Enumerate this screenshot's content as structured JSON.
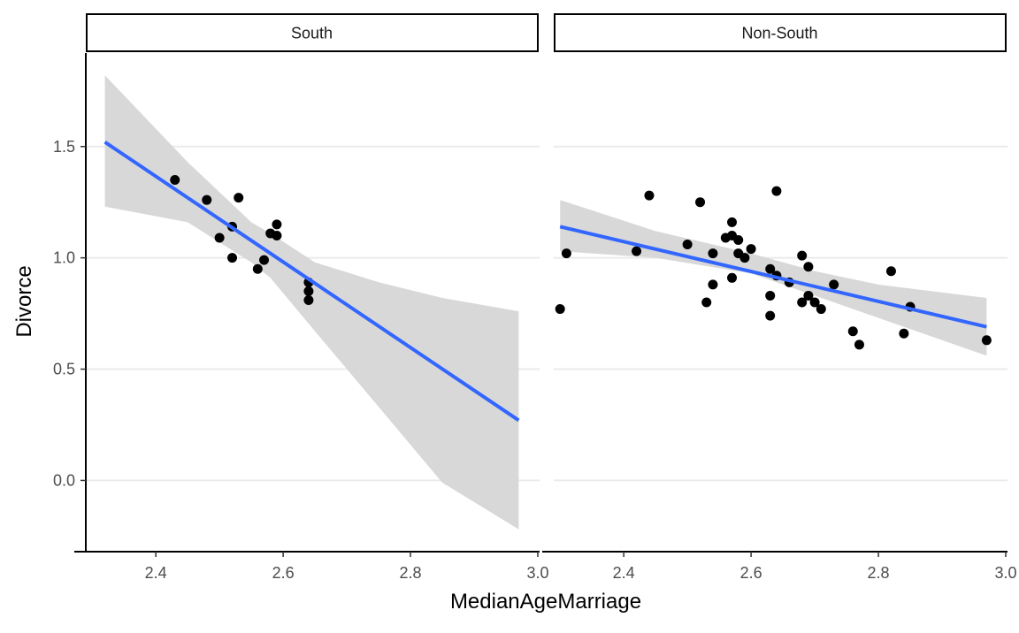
{
  "chart_data": {
    "type": "scatter",
    "xlabel": "MedianAgeMarriage",
    "ylabel": "Divorce",
    "xlim": [
      2.29,
      3.0
    ],
    "ylim": [
      -0.32,
      1.92
    ],
    "x_ticks": [
      "2.4",
      "2.6",
      "2.8",
      "3.0"
    ],
    "x_tick_values": [
      2.4,
      2.6,
      2.8,
      3.0
    ],
    "y_ticks": [
      "0.0",
      "0.5",
      "1.0",
      "1.5"
    ],
    "y_tick_values": [
      0.0,
      0.5,
      1.0,
      1.5
    ],
    "grid": "horizontal-major",
    "point_color": "#000000",
    "line_color": "#3366ff",
    "band_color": "#d6d6d6",
    "strip_border": "#000000",
    "facets": [
      {
        "label": "South",
        "points": [
          {
            "x": 2.43,
            "y": 1.35
          },
          {
            "x": 2.48,
            "y": 1.26
          },
          {
            "x": 2.5,
            "y": 1.09
          },
          {
            "x": 2.52,
            "y": 1.14
          },
          {
            "x": 2.52,
            "y": 1.0
          },
          {
            "x": 2.53,
            "y": 1.27
          },
          {
            "x": 2.56,
            "y": 0.95
          },
          {
            "x": 2.57,
            "y": 0.99
          },
          {
            "x": 2.58,
            "y": 1.11
          },
          {
            "x": 2.59,
            "y": 1.15
          },
          {
            "x": 2.59,
            "y": 1.1
          },
          {
            "x": 2.64,
            "y": 0.89
          },
          {
            "x": 2.64,
            "y": 0.85
          },
          {
            "x": 2.64,
            "y": 0.81
          }
        ],
        "fit": {
          "x": [
            2.32,
            2.97
          ],
          "y": [
            1.52,
            0.27
          ]
        },
        "band": {
          "x": [
            2.32,
            2.45,
            2.55,
            2.58,
            2.65,
            2.75,
            2.85,
            2.97
          ],
          "lower": [
            1.23,
            1.16,
            0.98,
            0.91,
            0.67,
            0.33,
            -0.01,
            -0.22
          ],
          "upper": [
            1.82,
            1.43,
            1.16,
            1.11,
            0.98,
            0.89,
            0.82,
            0.76
          ]
        }
      },
      {
        "label": "Non-South",
        "points": [
          {
            "x": 2.3,
            "y": 0.77
          },
          {
            "x": 2.31,
            "y": 1.02
          },
          {
            "x": 2.42,
            "y": 1.03
          },
          {
            "x": 2.44,
            "y": 1.28
          },
          {
            "x": 2.5,
            "y": 1.06
          },
          {
            "x": 2.52,
            "y": 1.25
          },
          {
            "x": 2.53,
            "y": 0.8
          },
          {
            "x": 2.54,
            "y": 1.02
          },
          {
            "x": 2.54,
            "y": 0.88
          },
          {
            "x": 2.56,
            "y": 1.09
          },
          {
            "x": 2.57,
            "y": 1.16
          },
          {
            "x": 2.57,
            "y": 1.1
          },
          {
            "x": 2.57,
            "y": 0.91
          },
          {
            "x": 2.58,
            "y": 1.08
          },
          {
            "x": 2.58,
            "y": 1.02
          },
          {
            "x": 2.59,
            "y": 1.0
          },
          {
            "x": 2.6,
            "y": 1.04
          },
          {
            "x": 2.63,
            "y": 0.95
          },
          {
            "x": 2.63,
            "y": 0.83
          },
          {
            "x": 2.63,
            "y": 0.74
          },
          {
            "x": 2.64,
            "y": 1.3
          },
          {
            "x": 2.64,
            "y": 0.92
          },
          {
            "x": 2.66,
            "y": 0.89
          },
          {
            "x": 2.68,
            "y": 1.01
          },
          {
            "x": 2.68,
            "y": 0.8
          },
          {
            "x": 2.69,
            "y": 0.96
          },
          {
            "x": 2.69,
            "y": 0.83
          },
          {
            "x": 2.7,
            "y": 0.8
          },
          {
            "x": 2.71,
            "y": 0.77
          },
          {
            "x": 2.73,
            "y": 0.88
          },
          {
            "x": 2.76,
            "y": 0.67
          },
          {
            "x": 2.77,
            "y": 0.61
          },
          {
            "x": 2.82,
            "y": 0.94
          },
          {
            "x": 2.84,
            "y": 0.66
          },
          {
            "x": 2.85,
            "y": 0.78
          },
          {
            "x": 2.97,
            "y": 0.63
          }
        ],
        "fit": {
          "x": [
            2.3,
            2.97
          ],
          "y": [
            1.14,
            0.69
          ]
        },
        "band": {
          "x": [
            2.3,
            2.45,
            2.6,
            2.7,
            2.8,
            2.97
          ],
          "lower": [
            1.03,
            1.0,
            0.93,
            0.83,
            0.73,
            0.56
          ],
          "upper": [
            1.26,
            1.12,
            1.02,
            0.94,
            0.88,
            0.82
          ]
        }
      }
    ]
  }
}
